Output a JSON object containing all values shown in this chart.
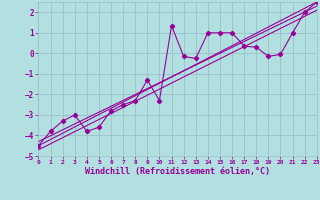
{
  "xlabel": "Windchill (Refroidissement éolien,°C)",
  "bg_color": "#b2e0e0",
  "grid_color": "#9bbfcc",
  "line_color": "#990099",
  "xlim": [
    0,
    23
  ],
  "ylim": [
    -5,
    2.5
  ],
  "xticks": [
    0,
    1,
    2,
    3,
    4,
    5,
    6,
    7,
    8,
    9,
    10,
    11,
    12,
    13,
    14,
    15,
    16,
    17,
    18,
    19,
    20,
    21,
    22,
    23
  ],
  "yticks": [
    -5,
    -4,
    -3,
    -2,
    -1,
    0,
    1,
    2
  ],
  "main_series_x": [
    0,
    1,
    2,
    3,
    4,
    5,
    6,
    7,
    8,
    9,
    10,
    11,
    12,
    13,
    14,
    15,
    16,
    17,
    18,
    19,
    20,
    21,
    22,
    23
  ],
  "main_series_y": [
    -4.5,
    -3.8,
    -3.3,
    -3.0,
    -3.8,
    -3.6,
    -2.8,
    -2.5,
    -2.3,
    -1.3,
    -2.3,
    1.35,
    -0.15,
    -0.25,
    1.0,
    1.0,
    1.0,
    0.35,
    0.3,
    -0.15,
    -0.05,
    1.0,
    2.0,
    2.5
  ],
  "trend_lines": [
    {
      "x": [
        0,
        23
      ],
      "y": [
        -4.5,
        2.5
      ]
    },
    {
      "x": [
        0,
        23
      ],
      "y": [
        -4.3,
        2.3
      ]
    },
    {
      "x": [
        0,
        23
      ],
      "y": [
        -4.7,
        2.1
      ]
    }
  ]
}
